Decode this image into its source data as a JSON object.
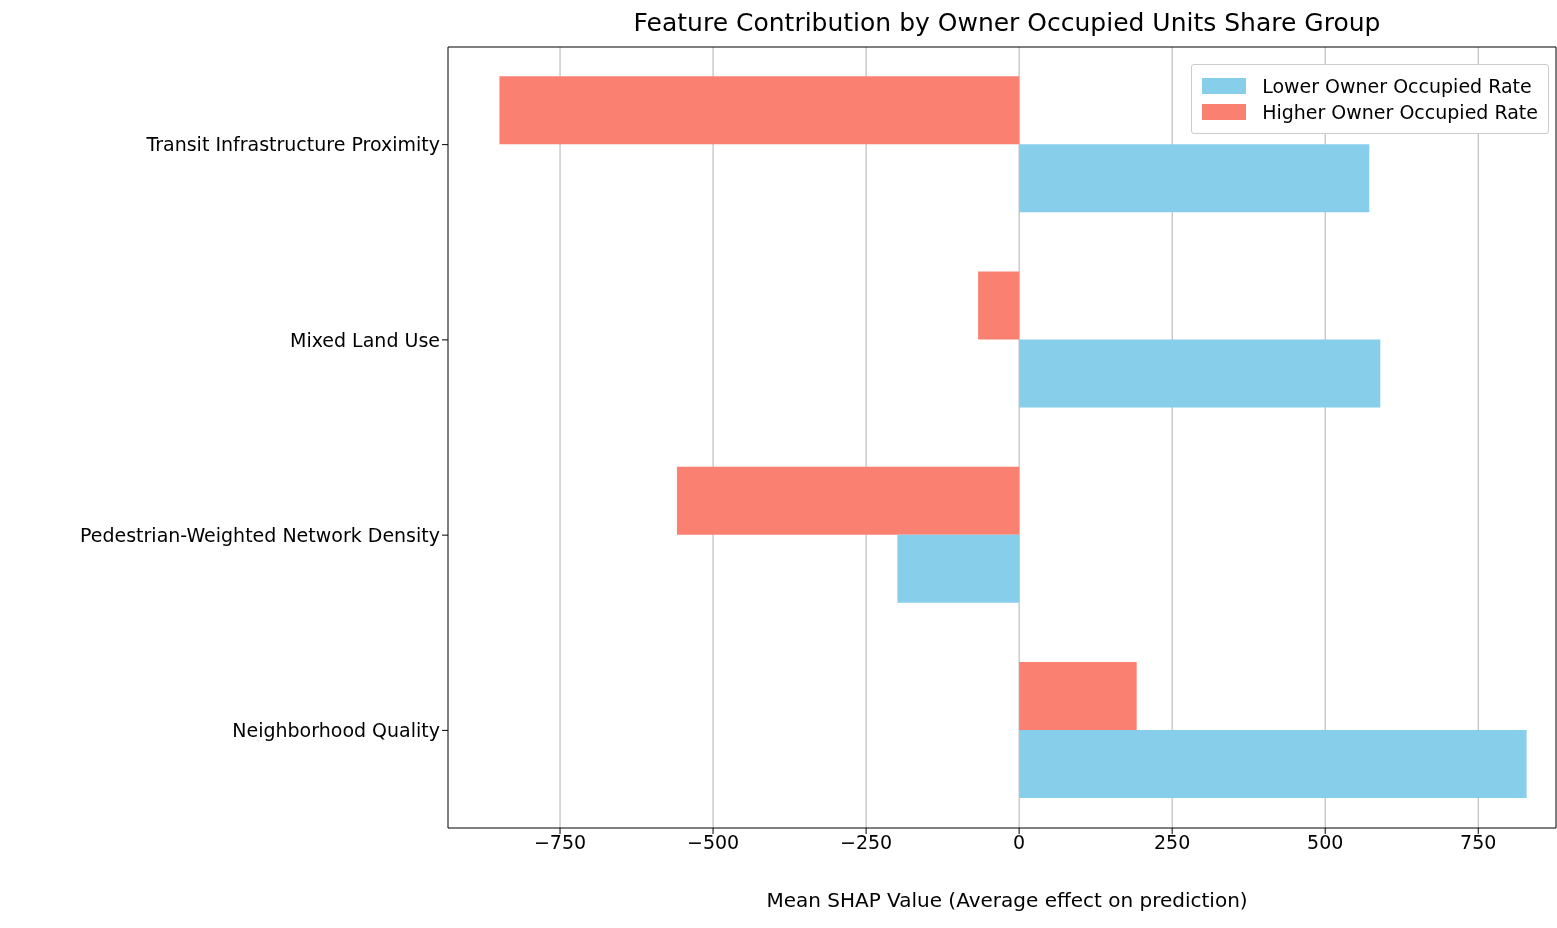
{
  "chart_data": {
    "type": "bar",
    "orientation": "horizontal",
    "title": "Feature Contribution by Owner Occupied Units Share Group",
    "xlabel": "Mean SHAP Value (Average effect on prediction)",
    "categories": [
      "Transit Infrastructure Proximity",
      "Mixed Land Use",
      "Pedestrian-Weighted Network Density",
      "Neighborhood Quality"
    ],
    "series": [
      {
        "name": "Lower Owner Occupied Rate",
        "color": "#87ceeb",
        "values": [
          572,
          590,
          -199,
          829
        ]
      },
      {
        "name": "Higher Owner Occupied Rate",
        "color": "#fa8072",
        "values": [
          -849,
          -67,
          -559,
          192
        ]
      }
    ],
    "xlim": [
      -933,
      877
    ],
    "xticks": [
      {
        "value": -750,
        "label": "−750"
      },
      {
        "value": -500,
        "label": "−500"
      },
      {
        "value": -250,
        "label": "−250"
      },
      0,
      250,
      500,
      750
    ],
    "grid": "x",
    "legend": "top right"
  }
}
